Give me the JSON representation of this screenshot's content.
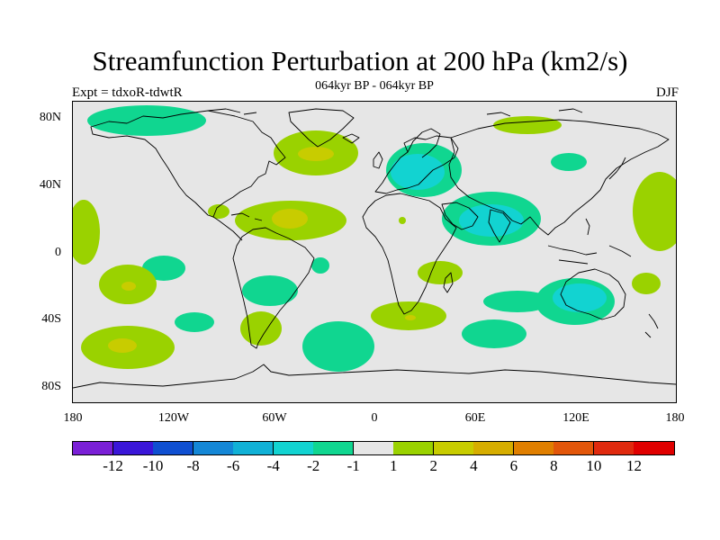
{
  "title": "Streamfunction Perturbation at 200 hPa (km2/s)",
  "subtitle": "064kyr BP - 064kyr BP",
  "experiment": "Expt = tdxoR-tdwtR",
  "season": "DJF",
  "lat_labels": [
    "80N",
    "40N",
    "0",
    "40S",
    "80S"
  ],
  "lon_labels": [
    "180",
    "120W",
    "60W",
    "0",
    "60E",
    "120E",
    "180"
  ],
  "colorbar": {
    "colors": [
      "#7a1fd6",
      "#3a16d8",
      "#0f4fd1",
      "#1487d6",
      "#11b1d6",
      "#12d3d1",
      "#10d690",
      "#e6e6e6",
      "#9ad200",
      "#c8cc00",
      "#d6ad00",
      "#e07f00",
      "#e2560a",
      "#e02a0e",
      "#e00000"
    ],
    "labels": [
      "-12",
      "-10",
      "-8",
      "-6",
      "-4",
      "-2",
      "-1",
      "1",
      "2",
      "4",
      "6",
      "8",
      "10",
      "12"
    ]
  },
  "colors": {
    "background": "#e6e6e6",
    "light_green": "#9ad200",
    "yellow_green": "#c8cc00",
    "aqua_green": "#10d690",
    "cyan": "#12d3d1",
    "coast": "#000000"
  }
}
